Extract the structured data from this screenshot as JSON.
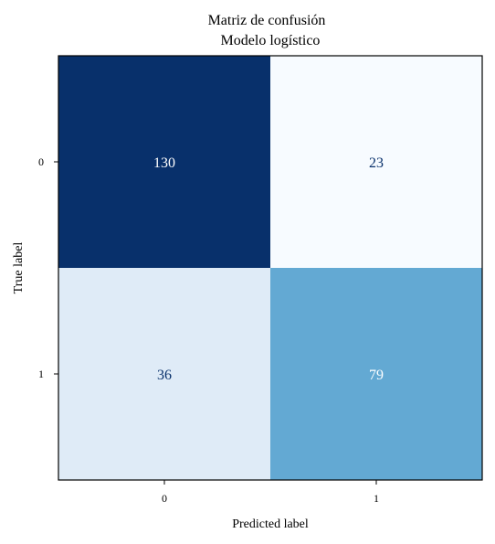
{
  "chart_data": {
    "type": "heatmap",
    "title": [
      "Matriz de confusión",
      "Modelo logístico"
    ],
    "xlabel": "Predicted label",
    "ylabel": "True label",
    "x_categories": [
      "0",
      "1"
    ],
    "y_categories": [
      "0",
      "1"
    ],
    "matrix": [
      [
        130,
        23
      ],
      [
        36,
        79
      ]
    ],
    "colormap": "Blues",
    "grid": false,
    "legend": "none"
  }
}
